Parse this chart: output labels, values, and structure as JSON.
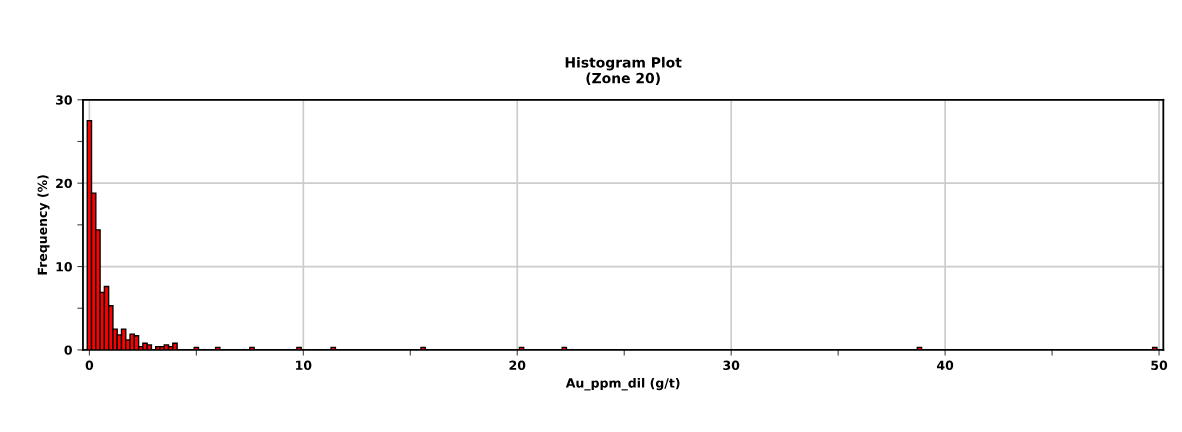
{
  "chart_data": {
    "type": "histogram",
    "title": "Histogram Plot\n(Zone 20)",
    "xlabel": "Au_ppm_dil (g/t)",
    "ylabel": "Frequency (%)",
    "bins": [
      -0.1,
      0.1,
      0.3,
      0.5,
      0.7,
      0.9,
      1.1,
      1.3,
      1.5,
      1.7,
      1.9,
      2.1,
      2.3,
      2.5,
      2.7,
      2.9,
      3.1,
      3.3,
      3.5,
      3.7,
      3.9,
      4.1,
      4.9,
      5.1,
      5.9,
      6.1,
      7.5,
      7.7,
      9.7,
      9.9,
      11.3,
      11.5,
      15.5,
      15.7,
      20.1,
      20.3,
      22.1,
      22.3,
      38.7,
      38.9,
      49.7,
      49.9
    ],
    "values": [
      27.5,
      18.8,
      14.4,
      6.9,
      7.6,
      5.3,
      2.5,
      1.8,
      2.5,
      1.2,
      1.9,
      1.7,
      0.4,
      0.8,
      0.6,
      0,
      0.4,
      0.4,
      0.6,
      0.4,
      0.8,
      0,
      0.3,
      0,
      0.3,
      0,
      0.3,
      0,
      0.3,
      0,
      0.3,
      0,
      0.3,
      0,
      0.3,
      0,
      0.3,
      0,
      0.3,
      0,
      0.3
    ],
    "color": "#ff0000",
    "xlim": [
      -0.3,
      50.2
    ],
    "ylim": [
      0,
      30
    ],
    "xticks": [
      0,
      {
        "value": 5,
        "label": null
      },
      10,
      {
        "value": 15,
        "label": null
      },
      20,
      {
        "value": 25,
        "label": null
      },
      30,
      {
        "value": 35,
        "label": null
      },
      40,
      {
        "value": 45,
        "label": null
      },
      50
    ],
    "yticks": [
      0,
      {
        "value": 5,
        "label": null
      },
      10,
      {
        "value": 15,
        "label": null
      },
      20,
      {
        "value": 25,
        "label": null
      },
      30
    ],
    "grid": true
  }
}
